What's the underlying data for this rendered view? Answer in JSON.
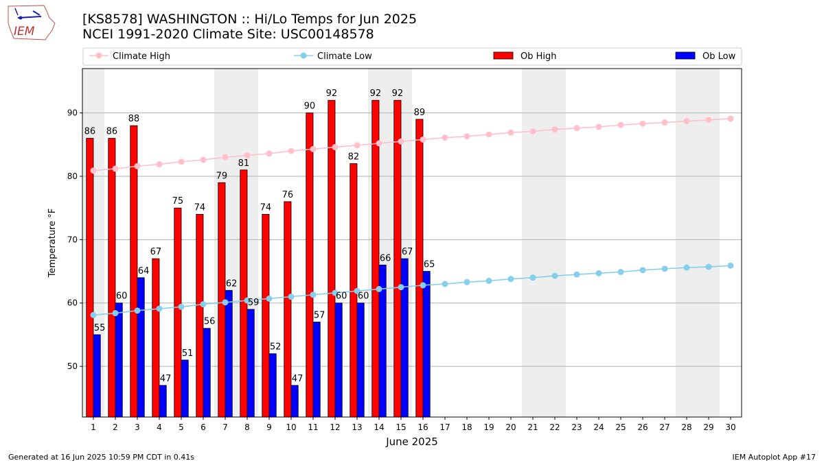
{
  "header": {
    "logo_text": "IEM",
    "title_line1": "[KS8578] WASHINGTON :: Hi/Lo Temps for Jun 2025",
    "title_line2": "NCEI 1991-2020 Climate Site: USC00148578"
  },
  "footer": {
    "left": "Generated at 16 Jun 2025 10:59 PM CDT in 0.41s",
    "right": "IEM Autoplot App #17"
  },
  "chart_data": {
    "type": "bar",
    "xlabel": "June 2025",
    "ylabel": "Temperature °F",
    "xlim": [
      0.5,
      30.5
    ],
    "ylim": [
      42,
      97
    ],
    "yticks": [
      50,
      60,
      70,
      80,
      90
    ],
    "grid": "horizontal",
    "legend_placement": "top",
    "shaded_days": [
      1,
      7,
      8,
      14,
      15,
      21,
      22,
      28,
      29
    ],
    "days": [
      1,
      2,
      3,
      4,
      5,
      6,
      7,
      8,
      9,
      10,
      11,
      12,
      13,
      14,
      15,
      16,
      17,
      18,
      19,
      20,
      21,
      22,
      23,
      24,
      25,
      26,
      27,
      28,
      29,
      30
    ],
    "series": [
      {
        "name": "Climate High",
        "kind": "line",
        "color": "#ffc0cb",
        "values": [
          80.9,
          81.2,
          81.6,
          81.9,
          82.3,
          82.6,
          83.0,
          83.3,
          83.6,
          84.0,
          84.3,
          84.6,
          84.9,
          85.2,
          85.5,
          85.8,
          86.1,
          86.3,
          86.6,
          86.9,
          87.1,
          87.4,
          87.6,
          87.8,
          88.1,
          88.3,
          88.5,
          88.7,
          88.9,
          89.1
        ]
      },
      {
        "name": "Climate Low",
        "kind": "line",
        "color": "#87ceeb",
        "values": [
          58.1,
          58.4,
          58.8,
          59.1,
          59.4,
          59.8,
          60.1,
          60.4,
          60.7,
          61.0,
          61.3,
          61.6,
          61.9,
          62.2,
          62.5,
          62.8,
          63.0,
          63.3,
          63.5,
          63.8,
          64.0,
          64.3,
          64.5,
          64.7,
          64.9,
          65.2,
          65.4,
          65.6,
          65.7,
          65.9
        ]
      },
      {
        "name": "Ob High",
        "kind": "bar",
        "color": "#ff0000",
        "values": [
          86,
          86,
          88,
          67,
          75,
          74,
          79,
          81,
          74,
          76,
          90,
          92,
          82,
          92,
          92,
          89
        ]
      },
      {
        "name": "Ob Low",
        "kind": "bar",
        "color": "#0000ff",
        "values": [
          55,
          60,
          64,
          47,
          51,
          56,
          62,
          59,
          52,
          47,
          57,
          60,
          60,
          66,
          67,
          65
        ]
      }
    ]
  }
}
